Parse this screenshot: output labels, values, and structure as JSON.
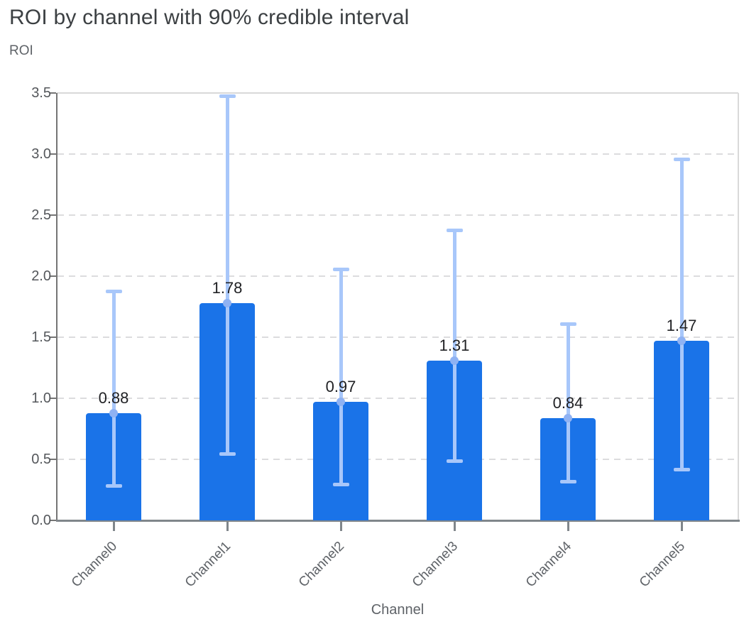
{
  "header": {
    "title": "ROI by channel with 90% credible interval"
  },
  "chart_data": {
    "type": "bar",
    "title": "ROI by channel with 90% credible interval",
    "ylabel": "ROI",
    "xlabel": "Channel",
    "categories": [
      "Channel0",
      "Channel1",
      "Channel2",
      "Channel3",
      "Channel4",
      "Channel5"
    ],
    "values": [
      0.88,
      1.78,
      0.97,
      1.31,
      0.84,
      1.47
    ],
    "value_labels": [
      "0.88",
      "1.78",
      "0.97",
      "1.31",
      "0.84",
      "1.47"
    ],
    "error_low": [
      0.27,
      0.53,
      0.28,
      0.47,
      0.3,
      0.4
    ],
    "error_high": [
      1.89,
      3.49,
      2.07,
      2.39,
      1.62,
      2.97
    ],
    "ylim": [
      0,
      3.5
    ],
    "yticks": [
      0.0,
      0.5,
      1.0,
      1.5,
      2.0,
      2.5,
      3.0,
      3.5
    ],
    "ytick_labels": [
      "0.0",
      "0.5",
      "1.0",
      "1.5",
      "2.0",
      "2.5",
      "3.0",
      "3.5"
    ],
    "grid": "dashed horizontal gridlines at each y tick",
    "legend": "none",
    "colors": {
      "bar": "#1a73e8",
      "error_bar": "#a8c7fa",
      "error_dot": "#8fb2f3",
      "gridline": "#dcdcde",
      "axis": "#757575",
      "axis_bottom": "#80868b",
      "plot_border": "#d9d9d9",
      "title_text": "#3c4043",
      "axis_label_text": "#5f6368",
      "tick_label_text": "#54575b",
      "value_label_text": "#202124"
    }
  }
}
